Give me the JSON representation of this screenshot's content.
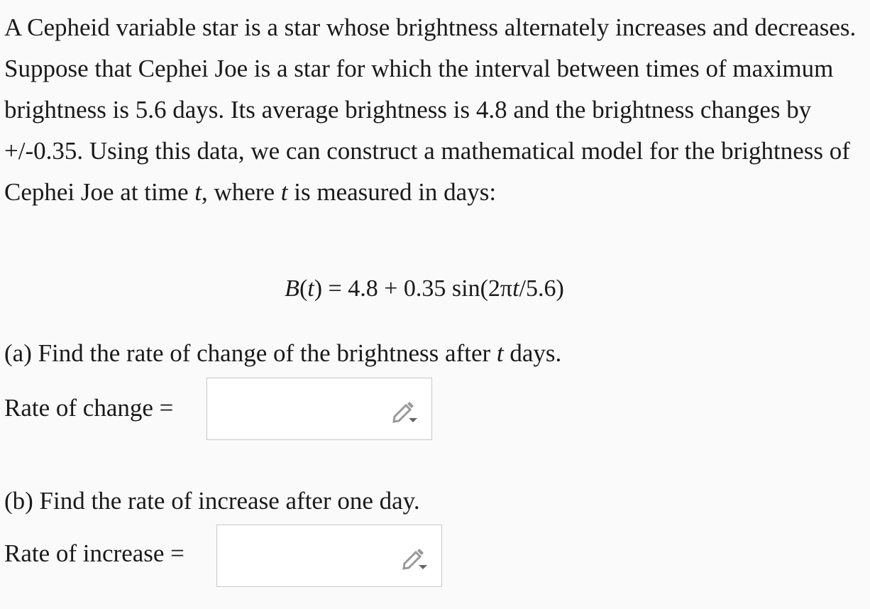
{
  "problem": {
    "intro": [
      "A Cepheid variable star is a star whose brightness alternately increases and decreases. Suppose that Cephei Joe is a star for which the interval between times of maximum brightness is 5.6 days. Its average brightness is 4.8 and the brightness changes by +/-0.35. Using this data, we can construct a mathematical model for the brightness of Cephei Joe at time ",
      "t",
      ", where ",
      "t",
      " is measured in days:"
    ],
    "formula": [
      "B",
      "(",
      "t",
      ") = 4.8 + 0.35 sin(2π",
      "t",
      "/5.6)"
    ],
    "parts": [
      {
        "question": [
          "(a) Find the rate of change of the brightness after ",
          "t",
          " days."
        ],
        "label": "Rate of change ="
      },
      {
        "question": [
          "(b) Find the rate of increase after one day."
        ],
        "label": "Rate of increase ="
      }
    ]
  }
}
